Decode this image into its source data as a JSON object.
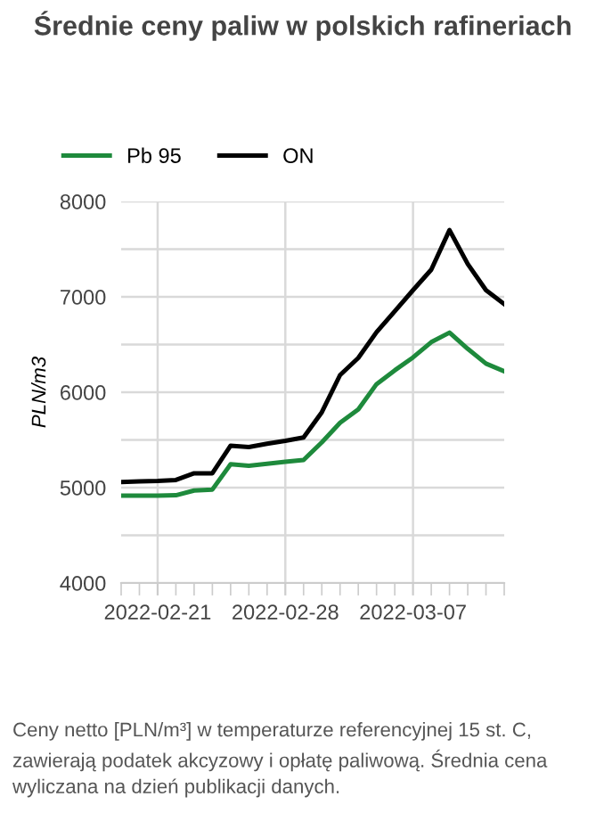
{
  "chart_data": {
    "type": "line",
    "title": "Średnie ceny paliw w polskich rafineriach",
    "ylabel": "PLN/m3",
    "x": [
      "2022-02-19",
      "2022-02-20",
      "2022-02-21",
      "2022-02-22",
      "2022-02-23",
      "2022-02-24",
      "2022-02-25",
      "2022-02-26",
      "2022-02-27",
      "2022-02-28",
      "2022-03-01",
      "2022-03-02",
      "2022-03-03",
      "2022-03-04",
      "2022-03-05",
      "2022-03-06",
      "2022-03-07",
      "2022-03-08",
      "2022-03-09",
      "2022-03-10",
      "2022-03-11",
      "2022-03-12"
    ],
    "series": [
      {
        "name": "Pb 95",
        "color": "#1e8a3c",
        "values": [
          4915,
          4915,
          4915,
          4920,
          4970,
          4980,
          5245,
          5230,
          5250,
          5270,
          5290,
          5475,
          5680,
          5820,
          6085,
          6230,
          6365,
          6525,
          6625,
          6455,
          6300,
          6220
        ]
      },
      {
        "name": "ON",
        "color": "#000000",
        "values": [
          5058,
          5065,
          5070,
          5080,
          5150,
          5150,
          5440,
          5425,
          5460,
          5490,
          5525,
          5790,
          6180,
          6360,
          6630,
          6850,
          7070,
          7285,
          7700,
          7345,
          7070,
          6925
        ]
      }
    ],
    "xlim": [
      "2022-02-19",
      "2022-03-12"
    ],
    "xticks": [
      {
        "value": "2022-02-21",
        "label": "2022-02-21"
      },
      {
        "value": "2022-02-28",
        "label": "2022-02-28"
      },
      {
        "value": "2022-03-07",
        "label": "2022-03-07"
      }
    ],
    "ylim": [
      4000,
      8000
    ],
    "yticks": [
      4000,
      {
        "value": 4500,
        "label": null
      },
      5000,
      {
        "value": 5500,
        "label": null
      },
      6000,
      {
        "value": 6500,
        "label": null
      },
      7000,
      {
        "value": 7500,
        "label": null
      },
      8000
    ],
    "grid": true,
    "legend": "top left",
    "marker": "none",
    "line_style": "solid",
    "annotations": [
      "Ceny netto [PLN/m³] w temperaturze referencyjnej 15 st. C, zawierają podatek akcyzowy i opłatę paliwową. Średnia cena wyliczana na dzień publikacji danych."
    ]
  }
}
